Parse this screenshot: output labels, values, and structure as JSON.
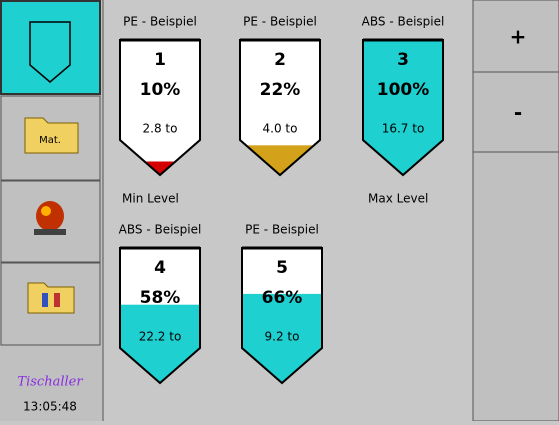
{
  "sidebar": {
    "material_button": "Mat.",
    "logo": "Tischaller",
    "time": "13:05:48"
  },
  "right_panel": {
    "plus": "+",
    "minus": "-"
  },
  "min_level": "Min Level",
  "max_level": "Max Level",
  "silos": [
    {
      "material": "PE - Beispiel",
      "number": "1",
      "percent": "10%",
      "tons": "2.8 to",
      "color": "#d40000"
    },
    {
      "material": "PE - Beispiel",
      "number": "2",
      "percent": "22%",
      "tons": "4.0 to",
      "color": "#d4a21a"
    },
    {
      "material": "ABS - Beispiel",
      "number": "3",
      "percent": "100%",
      "tons": "16.7 to",
      "color": "#1fd0d0"
    },
    {
      "material": "ABS - Beispiel",
      "number": "4",
      "percent": "58%",
      "tons": "22.2 to",
      "color": "#1fd0d0"
    },
    {
      "material": "PE - Beispiel",
      "number": "5",
      "percent": "66%",
      "tons": "9.2 to",
      "color": "#1fd0d0"
    }
  ]
}
